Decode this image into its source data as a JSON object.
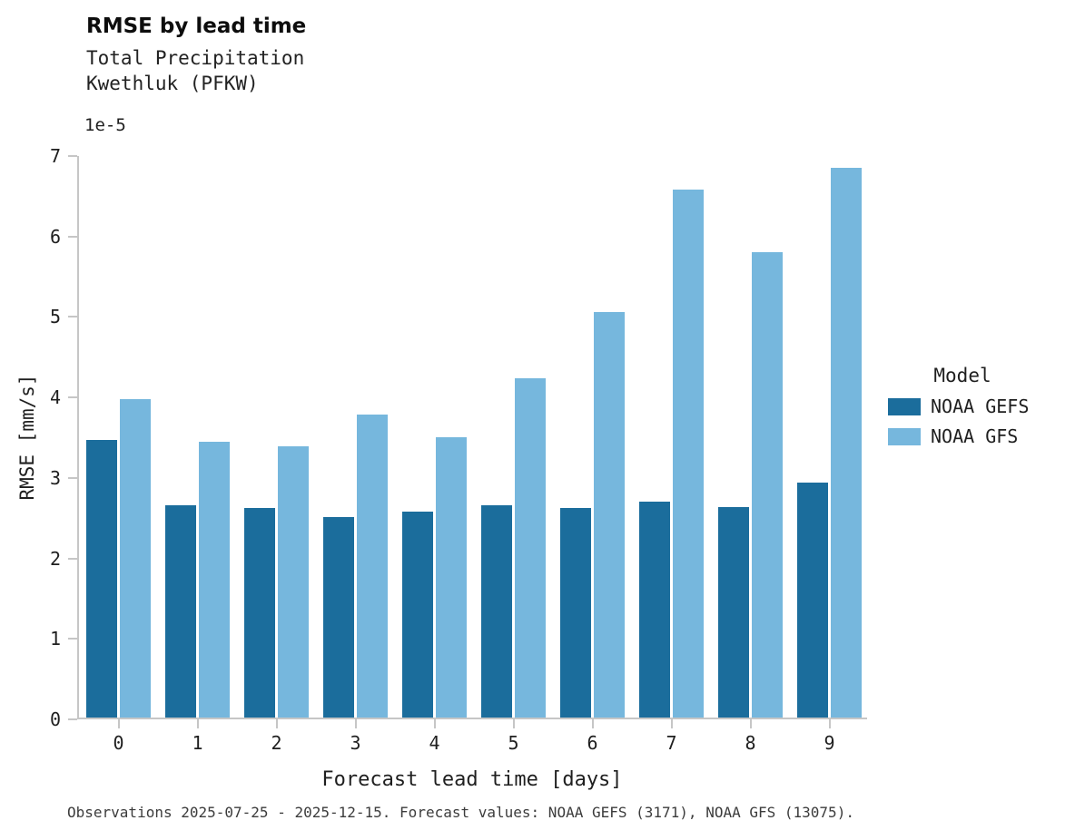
{
  "header": {
    "title": "RMSE by lead time",
    "subtitle_line1": "Total Precipitation",
    "subtitle_line2": "Kwethluk (PFKW)"
  },
  "axes": {
    "y_offset_text": "1e-5",
    "ylabel": "RMSE [mm/s]",
    "xlabel": "Forecast lead time [days]"
  },
  "legend": {
    "title": "Model",
    "items": [
      {
        "label": "NOAA GEFS",
        "color": "#1b6d9c"
      },
      {
        "label": "NOAA GFS",
        "color": "#76b7dd"
      }
    ]
  },
  "footer": {
    "note": "Observations 2025-07-25 - 2025-12-15. Forecast values: NOAA GEFS (3171), NOAA GFS (13075)."
  },
  "chart_data": {
    "type": "bar",
    "title": "RMSE by lead time",
    "subtitle": "Total Precipitation, Kwethluk (PFKW)",
    "xlabel": "Forecast lead time [days]",
    "ylabel": "RMSE [mm/s]",
    "y_unit_multiplier": "1e-5",
    "ylim": [
      0,
      7
    ],
    "yticks": [
      0,
      1,
      2,
      3,
      4,
      5,
      6,
      7
    ],
    "categories": [
      "0",
      "1",
      "2",
      "3",
      "4",
      "5",
      "6",
      "7",
      "8",
      "9"
    ],
    "series": [
      {
        "name": "NOAA GEFS",
        "color": "#1b6d9c",
        "values": [
          3.45,
          2.64,
          2.6,
          2.49,
          2.56,
          2.64,
          2.6,
          2.68,
          2.62,
          2.92
        ]
      },
      {
        "name": "NOAA GFS",
        "color": "#76b7dd",
        "values": [
          3.96,
          3.43,
          3.37,
          3.77,
          3.48,
          4.22,
          5.04,
          6.56,
          5.78,
          6.83
        ]
      }
    ],
    "legend_title": "Model",
    "legend_position": "right",
    "grid": false
  }
}
